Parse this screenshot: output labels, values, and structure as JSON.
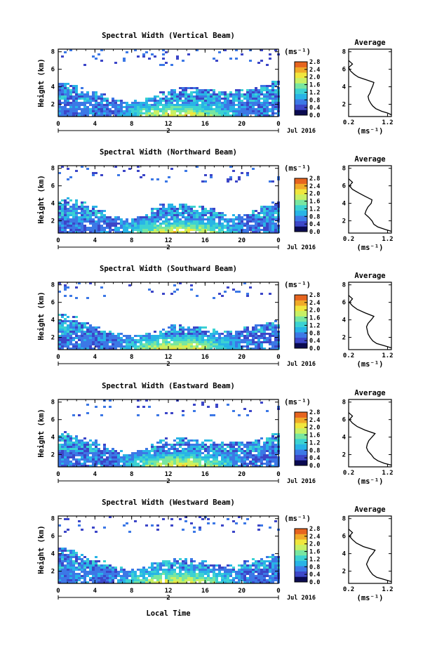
{
  "figure": {
    "x_axis_title": "Local Time",
    "date_label": "Jul 2016",
    "day_label": "2",
    "height_axis_label": "Height (km)",
    "colorbar_unit": "(ms⁻¹)",
    "profile_title": "Average",
    "profile_unit": "(ms⁻¹)"
  },
  "chart_data": [
    {
      "type": "heatmap",
      "title": "Spectral Width (Vertical Beam)",
      "ylabel": "Height (km)",
      "xlabel": "",
      "x_ticks": [
        "0",
        "4",
        "8",
        "12",
        "16",
        "20",
        "0"
      ],
      "xlim": [
        0,
        24
      ],
      "y_ticks": [
        "2",
        "4",
        "6",
        "8"
      ],
      "ylim": [
        0.6,
        8.3
      ],
      "colorbar": {
        "label": "(ms⁻¹)",
        "ticks": [
          "0.0",
          "0.4",
          "0.8",
          "1.2",
          "1.6",
          "2.0",
          "2.4",
          "2.8"
        ],
        "range": [
          0,
          2.8
        ]
      },
      "echo_top_km": [
        4.6,
        4.3,
        4.0,
        3.7,
        3.3,
        2.9,
        2.6,
        2.5,
        2.6,
        2.8,
        3.1,
        3.5,
        3.9,
        4.0,
        4.0,
        3.9,
        3.8,
        3.7,
        3.7,
        3.8,
        3.8,
        4.0,
        4.3,
        4.7
      ],
      "average_profile": {
        "title": "Average",
        "xlabel": "(ms⁻¹)",
        "x_ticks": [
          "0.2",
          "1.2"
        ],
        "xlim": [
          0.2,
          1.3
        ],
        "y_ticks": [
          "2",
          "4",
          "6",
          "8"
        ],
        "ylim": [
          0.6,
          8.3
        ],
        "height_km": [
          0.8,
          1.0,
          1.2,
          1.5,
          1.8,
          2.1,
          2.5,
          2.9,
          3.3,
          3.7,
          4.1,
          4.5,
          4.8,
          5.1,
          5.4,
          5.8,
          6.2,
          6.6,
          7.0
        ],
        "width_ms": [
          1.3,
          1.2,
          1.05,
          0.9,
          0.82,
          0.77,
          0.72,
          0.7,
          0.75,
          0.78,
          0.82,
          0.85,
          0.65,
          0.45,
          0.35,
          0.25,
          0.2,
          0.3,
          0.2
        ]
      }
    },
    {
      "type": "heatmap",
      "title": "Spectral Width (Northward Beam)",
      "ylabel": "Height (km)",
      "xlabel": "",
      "x_ticks": [
        "0",
        "4",
        "8",
        "12",
        "16",
        "20",
        "0"
      ],
      "xlim": [
        0,
        24
      ],
      "y_ticks": [
        "2",
        "4",
        "6",
        "8"
      ],
      "ylim": [
        0.6,
        8.3
      ],
      "colorbar": {
        "label": "(ms⁻¹)",
        "ticks": [
          "0.0",
          "0.4",
          "0.8",
          "1.2",
          "1.6",
          "2.0",
          "2.4",
          "2.8"
        ],
        "range": [
          0,
          2.8
        ]
      },
      "echo_top_km": [
        4.8,
        4.6,
        4.3,
        3.9,
        3.3,
        2.9,
        2.6,
        2.5,
        2.6,
        2.8,
        3.6,
        4.0,
        4.0,
        4.0,
        3.9,
        3.9,
        3.8,
        3.1,
        2.9,
        3.0,
        3.1,
        3.4,
        3.8,
        4.3
      ],
      "average_profile": {
        "title": "Average",
        "xlabel": "(ms⁻¹)",
        "x_ticks": [
          "0.2",
          "1.2"
        ],
        "xlim": [
          0.2,
          1.3
        ],
        "y_ticks": [
          "2",
          "4",
          "6",
          "8"
        ],
        "ylim": [
          0.6,
          8.3
        ],
        "height_km": [
          0.8,
          1.0,
          1.3,
          1.6,
          2.0,
          2.4,
          2.8,
          3.2,
          3.6,
          4.0,
          4.4,
          4.8,
          5.2,
          5.6,
          6.0,
          6.4,
          6.8
        ],
        "width_ms": [
          1.3,
          1.15,
          0.95,
          0.85,
          0.8,
          0.72,
          0.62,
          0.65,
          0.7,
          0.78,
          0.8,
          0.62,
          0.45,
          0.3,
          0.22,
          0.3,
          0.2
        ]
      }
    },
    {
      "type": "heatmap",
      "title": "Spectral Width (Southward Beam)",
      "ylabel": "Height (km)",
      "xlabel": "",
      "x_ticks": [
        "0",
        "4",
        "8",
        "12",
        "16",
        "20",
        "0"
      ],
      "xlim": [
        0,
        24
      ],
      "y_ticks": [
        "2",
        "4",
        "6",
        "8"
      ],
      "ylim": [
        0.6,
        8.3
      ],
      "colorbar": {
        "label": "(ms⁻¹)",
        "ticks": [
          "0.0",
          "0.4",
          "0.8",
          "1.2",
          "1.6",
          "2.0",
          "2.4",
          "2.8"
        ],
        "range": [
          0,
          2.8
        ]
      },
      "echo_top_km": [
        4.7,
        4.5,
        4.2,
        3.9,
        3.4,
        3.0,
        2.6,
        2.4,
        2.4,
        2.6,
        3.0,
        3.4,
        3.5,
        3.5,
        3.4,
        3.3,
        3.2,
        3.0,
        2.9,
        3.0,
        3.4,
        3.6,
        3.8,
        4.2
      ],
      "average_profile": {
        "title": "Average",
        "xlabel": "(ms⁻¹)",
        "x_ticks": [
          "0.2",
          "1.2"
        ],
        "xlim": [
          0.2,
          1.3
        ],
        "y_ticks": [
          "2",
          "4",
          "6",
          "8"
        ],
        "ylim": [
          0.6,
          8.3
        ],
        "height_km": [
          0.8,
          1.0,
          1.3,
          1.6,
          2.0,
          2.4,
          2.8,
          3.2,
          3.6,
          4.0,
          4.4,
          4.8,
          5.2,
          5.6,
          6.0,
          6.4,
          6.8
        ],
        "width_ms": [
          1.3,
          1.15,
          0.92,
          0.82,
          0.75,
          0.7,
          0.68,
          0.66,
          0.7,
          0.78,
          0.85,
          0.62,
          0.42,
          0.3,
          0.22,
          0.3,
          0.2
        ]
      }
    },
    {
      "type": "heatmap",
      "title": "Spectral Width (Eastward Beam)",
      "ylabel": "Height (km)",
      "xlabel": "",
      "x_ticks": [
        "0",
        "4",
        "8",
        "12",
        "16",
        "20",
        "0"
      ],
      "xlim": [
        0,
        24
      ],
      "y_ticks": [
        "2",
        "4",
        "6",
        "8"
      ],
      "ylim": [
        0.6,
        8.3
      ],
      "colorbar": {
        "label": "(ms⁻¹)",
        "ticks": [
          "0.0",
          "0.4",
          "0.8",
          "1.2",
          "1.6",
          "2.0",
          "2.4",
          "2.8"
        ],
        "range": [
          0,
          2.8
        ]
      },
      "echo_top_km": [
        4.8,
        4.5,
        4.2,
        3.8,
        3.3,
        2.9,
        2.6,
        2.5,
        2.6,
        2.9,
        3.6,
        4.0,
        4.0,
        4.0,
        3.9,
        3.9,
        3.8,
        3.7,
        3.6,
        3.5,
        3.6,
        3.8,
        4.2,
        4.6
      ],
      "average_profile": {
        "title": "Average",
        "xlabel": "(ms⁻¹)",
        "x_ticks": [
          "0.2",
          "1.2"
        ],
        "xlim": [
          0.2,
          1.3
        ],
        "y_ticks": [
          "2",
          "4",
          "6",
          "8"
        ],
        "ylim": [
          0.6,
          8.3
        ],
        "height_km": [
          0.8,
          1.0,
          1.3,
          1.6,
          2.0,
          2.4,
          2.8,
          3.2,
          3.6,
          4.0,
          4.4,
          4.8,
          5.2,
          5.6,
          6.0,
          6.4,
          6.8
        ],
        "width_ms": [
          1.3,
          1.12,
          0.95,
          0.85,
          0.78,
          0.7,
          0.66,
          0.68,
          0.72,
          0.8,
          0.88,
          0.62,
          0.42,
          0.3,
          0.22,
          0.3,
          0.2
        ]
      }
    },
    {
      "type": "heatmap",
      "title": "Spectral Width (Westward Beam)",
      "ylabel": "Height (km)",
      "xlabel": "Local Time",
      "x_ticks": [
        "0",
        "4",
        "8",
        "12",
        "16",
        "20",
        "0"
      ],
      "xlim": [
        0,
        24
      ],
      "y_ticks": [
        "2",
        "4",
        "6",
        "8"
      ],
      "ylim": [
        0.6,
        8.3
      ],
      "colorbar": {
        "label": "(ms⁻¹)",
        "ticks": [
          "0.0",
          "0.4",
          "0.8",
          "1.2",
          "1.6",
          "2.0",
          "2.4",
          "2.8"
        ],
        "range": [
          0,
          2.8
        ]
      },
      "echo_top_km": [
        4.7,
        4.5,
        4.2,
        3.9,
        3.4,
        3.0,
        2.6,
        2.4,
        2.5,
        2.7,
        3.1,
        3.4,
        3.6,
        3.6,
        3.5,
        3.4,
        3.0,
        2.9,
        2.9,
        3.0,
        3.4,
        3.7,
        3.9,
        4.3
      ],
      "average_profile": {
        "title": "Average",
        "xlabel": "(ms⁻¹)",
        "x_ticks": [
          "0.2",
          "1.2"
        ],
        "xlim": [
          0.2,
          1.3
        ],
        "y_ticks": [
          "2",
          "4",
          "6",
          "8"
        ],
        "ylim": [
          0.6,
          8.3
        ],
        "height_km": [
          0.8,
          1.0,
          1.3,
          1.6,
          2.0,
          2.4,
          2.8,
          3.2,
          3.6,
          4.0,
          4.4,
          4.8,
          5.2,
          5.6,
          6.0,
          6.4,
          6.8
        ],
        "width_ms": [
          1.3,
          1.15,
          0.92,
          0.82,
          0.75,
          0.7,
          0.66,
          0.7,
          0.74,
          0.82,
          0.88,
          0.58,
          0.4,
          0.3,
          0.22,
          0.3,
          0.2
        ]
      }
    }
  ],
  "colors": {
    "colormap": [
      "#0a0a50",
      "#3c46c8",
      "#3c78e6",
      "#28b4e6",
      "#3cd2d2",
      "#78e6a0",
      "#c8f064",
      "#f0e63c",
      "#f0aa28",
      "#e6641e",
      "#c81e14"
    ],
    "background": "#ffffff",
    "axis": "#000000"
  }
}
